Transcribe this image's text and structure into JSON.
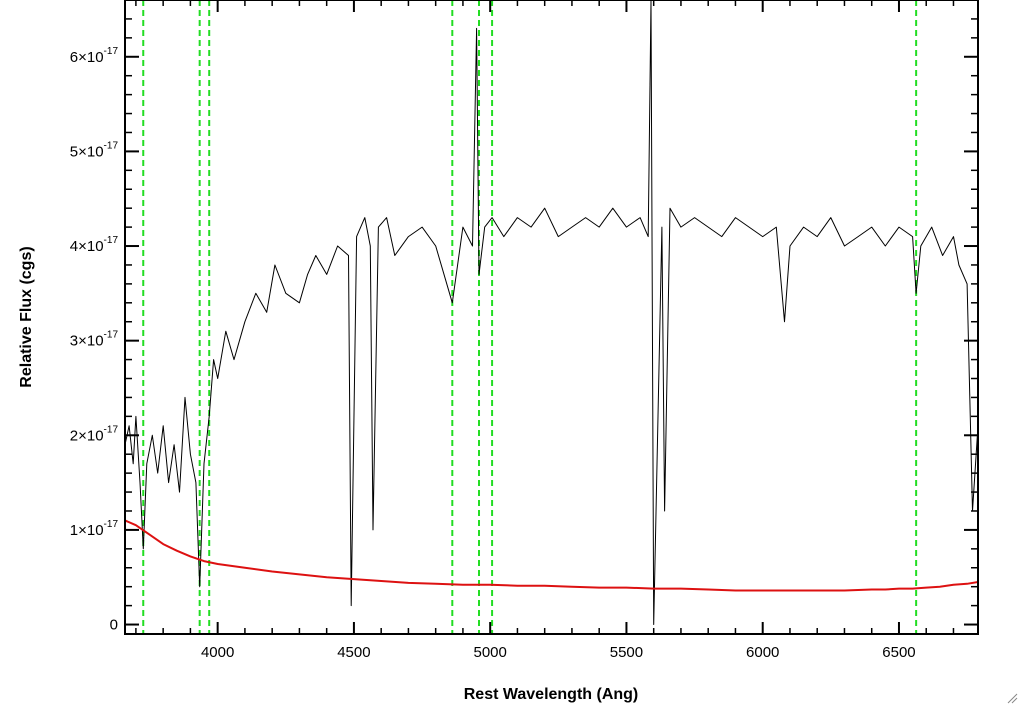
{
  "chart_data": {
    "type": "line",
    "title": "",
    "xlabel": "Rest Wavelength (Ang)",
    "ylabel": "Relative Flux (cgs)",
    "xlim": [
      3660,
      6790
    ],
    "ylim": [
      -1e-18,
      6.6e-17
    ],
    "x_ticks": [
      {
        "value": 4000,
        "label": "4000"
      },
      {
        "value": 4500,
        "label": "4500"
      },
      {
        "value": 5000,
        "label": "5000"
      },
      {
        "value": 5500,
        "label": "5500"
      },
      {
        "value": 6000,
        "label": "6000"
      },
      {
        "value": 6500,
        "label": "6500"
      }
    ],
    "y_ticks": [
      {
        "value": 0,
        "mant": "0",
        "exp": ""
      },
      {
        "value": 1e-17,
        "mant": "1×10",
        "exp": "-17"
      },
      {
        "value": 2e-17,
        "mant": "2×10",
        "exp": "-17"
      },
      {
        "value": 3e-17,
        "mant": "3×10",
        "exp": "-17"
      },
      {
        "value": 4e-17,
        "mant": "4×10",
        "exp": "-17"
      },
      {
        "value": 5e-17,
        "mant": "5×10",
        "exp": "-17"
      },
      {
        "value": 6e-17,
        "mant": "6×10",
        "exp": "-17"
      }
    ],
    "grid": false,
    "vertical_lines": {
      "style": "dashed",
      "color": "#22dd22",
      "x": [
        3727,
        3934,
        3969,
        4861,
        4959,
        5007,
        6563
      ]
    },
    "series": [
      {
        "color": "#000000",
        "x": [
          3660,
          3675,
          3690,
          3700,
          3715,
          3727,
          3740,
          3760,
          3780,
          3800,
          3820,
          3840,
          3860,
          3880,
          3900,
          3920,
          3934,
          3950,
          3969,
          3985,
          4000,
          4030,
          4060,
          4100,
          4140,
          4180,
          4210,
          4250,
          4300,
          4330,
          4360,
          4400,
          4440,
          4480,
          4490,
          4510,
          4540,
          4560,
          4570,
          4590,
          4620,
          4650,
          4700,
          4750,
          4800,
          4861,
          4900,
          4935,
          4950,
          4959,
          4980,
          5007,
          5050,
          5100,
          5150,
          5200,
          5250,
          5300,
          5350,
          5400,
          5450,
          5500,
          5550,
          5580,
          5590,
          5600,
          5630,
          5640,
          5660,
          5700,
          5750,
          5800,
          5850,
          5900,
          5950,
          6000,
          6050,
          6080,
          6100,
          6150,
          6200,
          6250,
          6300,
          6350,
          6400,
          6450,
          6500,
          6550,
          6563,
          6580,
          6620,
          6660,
          6700,
          6720,
          6750,
          6770,
          6790
        ],
        "values": [
          1.9e-17,
          2.1e-17,
          1.7e-17,
          2.2e-17,
          1.5e-17,
          8e-18,
          1.7e-17,
          2e-17,
          1.6e-17,
          2.1e-17,
          1.5e-17,
          1.9e-17,
          1.4e-17,
          2.4e-17,
          1.8e-17,
          1.5e-17,
          4e-18,
          1.7e-17,
          2.2e-17,
          2.8e-17,
          2.6e-17,
          3.1e-17,
          2.8e-17,
          3.2e-17,
          3.5e-17,
          3.3e-17,
          3.8e-17,
          3.5e-17,
          3.4e-17,
          3.7e-17,
          3.9e-17,
          3.7e-17,
          4e-17,
          3.9e-17,
          2e-18,
          4.1e-17,
          4.3e-17,
          4e-17,
          1e-17,
          4.2e-17,
          4.3e-17,
          3.9e-17,
          4.1e-17,
          4.2e-17,
          4e-17,
          3.4e-17,
          4.2e-17,
          4e-17,
          6.3e-17,
          3.7e-17,
          4.2e-17,
          4.3e-17,
          4.1e-17,
          4.3e-17,
          4.2e-17,
          4.4e-17,
          4.1e-17,
          4.2e-17,
          4.3e-17,
          4.2e-17,
          4.4e-17,
          4.2e-17,
          4.3e-17,
          4.1e-17,
          6.6e-17,
          0.0,
          4.2e-17,
          1.2e-17,
          4.4e-17,
          4.2e-17,
          4.3e-17,
          4.2e-17,
          4.1e-17,
          4.3e-17,
          4.2e-17,
          4.1e-17,
          4.2e-17,
          3.2e-17,
          4e-17,
          4.2e-17,
          4.1e-17,
          4.3e-17,
          4e-17,
          4.1e-17,
          4.2e-17,
          4e-17,
          4.2e-17,
          4.1e-17,
          3.5e-17,
          4e-17,
          4.2e-17,
          3.9e-17,
          4.1e-17,
          3.8e-17,
          3.6e-17,
          1.2e-17,
          2.1e-17
        ]
      },
      {
        "color": "#dd1111",
        "x": [
          3660,
          3700,
          3750,
          3800,
          3850,
          3900,
          3950,
          4000,
          4100,
          4200,
          4300,
          4400,
          4500,
          4600,
          4700,
          4800,
          4900,
          5000,
          5100,
          5200,
          5300,
          5400,
          5500,
          5600,
          5700,
          5800,
          5900,
          6000,
          6100,
          6200,
          6300,
          6400,
          6450,
          6500,
          6550,
          6600,
          6650,
          6700,
          6750,
          6790
        ],
        "values": [
          1.1e-17,
          1.05e-17,
          9.5e-18,
          8.5e-18,
          7.8e-18,
          7.2e-18,
          6.7e-18,
          6.4e-18,
          6e-18,
          5.6e-18,
          5.3e-18,
          5e-18,
          4.8e-18,
          4.6e-18,
          4.4e-18,
          4.3e-18,
          4.2e-18,
          4.2e-18,
          4.1e-18,
          4.1e-18,
          4e-18,
          3.9e-18,
          3.9e-18,
          3.8e-18,
          3.8e-18,
          3.7e-18,
          3.6e-18,
          3.6e-18,
          3.6e-18,
          3.6e-18,
          3.6e-18,
          3.7e-18,
          3.7e-18,
          3.8e-18,
          3.8e-18,
          3.9e-18,
          4e-18,
          4.2e-18,
          4.3e-18,
          4.5e-18
        ]
      }
    ]
  }
}
